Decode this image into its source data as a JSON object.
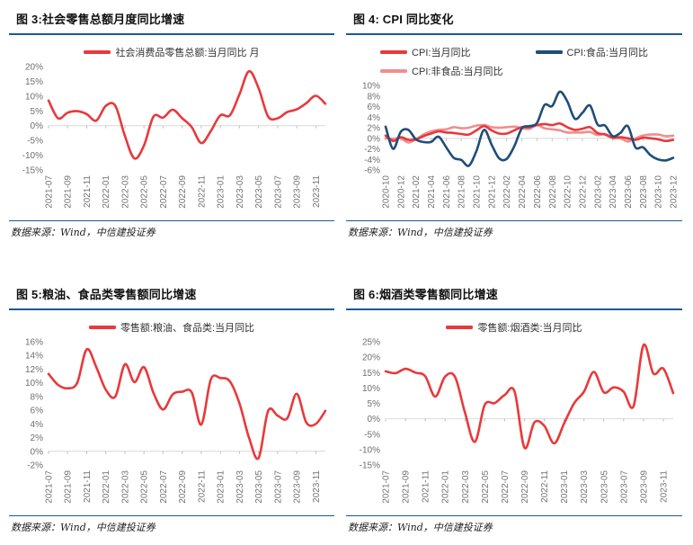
{
  "colors": {
    "accent_red": "#e8393b",
    "accent_navy": "#1f4e79",
    "accent_pink": "#ef8e8f",
    "rule_blue": "#1b5a96",
    "zero_axis": "#d9d9d9",
    "tick": "#bfbfbf",
    "axis_label": "#737373"
  },
  "chart_data": [
    {
      "id": "retail-total-yoy",
      "type": "line",
      "title": "图 3:社会零售总额月度同比增速",
      "source": "数据来源：Wind，中信建投证券",
      "ylim": [
        -15,
        20
      ],
      "ytick_step": 5,
      "ytick_suffix": "%",
      "x_label_every": 2,
      "grid": false,
      "legend_position": "top-center",
      "categories": [
        "2021-07",
        "2021-08",
        "2021-09",
        "2021-10",
        "2021-11",
        "2021-12",
        "2022-01",
        "2022-02",
        "2022-03",
        "2022-04",
        "2022-05",
        "2022-06",
        "2022-07",
        "2022-08",
        "2022-09",
        "2022-10",
        "2022-11",
        "2022-12",
        "2023-01",
        "2023-02",
        "2023-03",
        "2023-04",
        "2023-05",
        "2023-06",
        "2023-07",
        "2023-08",
        "2023-09",
        "2023-10",
        "2023-11",
        "2023-12"
      ],
      "series": [
        {
          "name": "社会消费品零售总额:当月同比 月",
          "color": "#e8393b",
          "z": 0,
          "values": [
            8.5,
            2.5,
            4.4,
            4.9,
            3.9,
            1.7,
            6.7,
            6.7,
            -3.5,
            -11.1,
            -6.7,
            3.1,
            2.7,
            5.4,
            2.5,
            -0.5,
            -5.9,
            -1.8,
            3.5,
            3.5,
            10.6,
            18.4,
            12.7,
            3.1,
            2.5,
            4.6,
            5.5,
            7.6,
            10.1,
            7.4
          ]
        }
      ]
    },
    {
      "id": "cpi-yoy",
      "type": "line",
      "title": "图 4: CPI 同比变化",
      "source": "数据来源：Wind，中信建投证券",
      "ylim": [
        -6,
        10
      ],
      "ytick_step": 2,
      "ytick_suffix": "%",
      "x_label_every": 2,
      "grid": false,
      "legend_position": "top-center",
      "categories": [
        "2020-10",
        "2020-11",
        "2020-12",
        "2021-01",
        "2021-02",
        "2021-03",
        "2021-04",
        "2021-05",
        "2021-06",
        "2021-07",
        "2021-08",
        "2021-09",
        "2021-10",
        "2021-11",
        "2021-12",
        "2022-01",
        "2022-02",
        "2022-03",
        "2022-04",
        "2022-05",
        "2022-06",
        "2022-07",
        "2022-08",
        "2022-09",
        "2022-10",
        "2022-11",
        "2022-12",
        "2023-01",
        "2023-02",
        "2023-03",
        "2023-04",
        "2023-05",
        "2023-06",
        "2023-07",
        "2023-08",
        "2023-09",
        "2023-10",
        "2023-11",
        "2023-12"
      ],
      "series": [
        {
          "name": "CPI:当月同比",
          "color": "#e8393b",
          "z": 1,
          "values": [
            0.5,
            -0.5,
            0.2,
            -0.3,
            -0.2,
            0.4,
            0.9,
            1.3,
            1.1,
            1.0,
            0.8,
            0.7,
            1.5,
            2.3,
            1.5,
            0.9,
            0.9,
            1.5,
            2.1,
            2.1,
            2.5,
            2.7,
            2.5,
            2.8,
            2.1,
            1.6,
            1.8,
            2.1,
            1.0,
            0.7,
            0.1,
            0.2,
            0.0,
            -0.3,
            0.1,
            0.0,
            -0.2,
            -0.5,
            -0.3
          ]
        },
        {
          "name": "CPI:食品:当月同比",
          "color": "#1f4e79",
          "z": 2,
          "values": [
            2.2,
            -2.0,
            1.2,
            1.6,
            -0.2,
            -0.7,
            -0.7,
            0.3,
            -1.7,
            -3.7,
            -4.1,
            -5.2,
            -2.4,
            1.6,
            -1.2,
            -3.8,
            -3.9,
            -1.5,
            1.9,
            2.3,
            2.9,
            6.3,
            6.1,
            8.8,
            7.0,
            3.7,
            4.8,
            6.2,
            2.6,
            2.4,
            0.4,
            1.0,
            2.3,
            -1.7,
            -1.7,
            -3.2,
            -4.0,
            -4.2,
            -3.7
          ]
        },
        {
          "name": "CPI:非食品:当月同比",
          "color": "#ef8e8f",
          "z": 0,
          "values": [
            0.0,
            -0.1,
            0.0,
            -0.8,
            -0.2,
            0.7,
            1.3,
            1.6,
            1.7,
            2.1,
            1.9,
            2.0,
            2.4,
            2.5,
            2.1,
            2.0,
            2.1,
            2.2,
            1.9,
            1.8,
            2.5,
            1.9,
            1.7,
            1.5,
            1.1,
            1.1,
            1.1,
            1.2,
            0.6,
            0.8,
            0.1,
            0.0,
            -0.6,
            0.0,
            0.5,
            0.7,
            0.7,
            0.4,
            0.5
          ]
        }
      ]
    },
    {
      "id": "grain-oil-food-retail-yoy",
      "type": "line",
      "title": "图 5:粮油、食品类零售额同比增速",
      "source": "数据来源：Wind，中信建投证券",
      "ylim": [
        -2,
        16
      ],
      "ytick_step": 2,
      "ytick_suffix": "%",
      "x_label_every": 2,
      "grid": false,
      "legend_position": "top-center",
      "categories": [
        "2021-07",
        "2021-08",
        "2021-09",
        "2021-10",
        "2021-11",
        "2021-12",
        "2022-01",
        "2022-02",
        "2022-03",
        "2022-04",
        "2022-05",
        "2022-06",
        "2022-07",
        "2022-08",
        "2022-09",
        "2022-10",
        "2022-11",
        "2022-12",
        "2023-01",
        "2023-02",
        "2023-03",
        "2023-04",
        "2023-05",
        "2023-06",
        "2023-07",
        "2023-08",
        "2023-09",
        "2023-10",
        "2023-11",
        "2023-12"
      ],
      "series": [
        {
          "name": "零售额:粮油、食品类:当月同比",
          "color": "#e8393b",
          "z": 0,
          "values": [
            11.3,
            9.7,
            9.2,
            10.0,
            14.9,
            12.3,
            9.0,
            8.0,
            12.7,
            10.1,
            12.3,
            8.5,
            6.1,
            8.3,
            8.7,
            8.6,
            3.9,
            10.5,
            10.7,
            10.2,
            7.0,
            2.0,
            -1.0,
            5.9,
            5.2,
            4.8,
            8.4,
            4.2,
            4.0,
            5.9
          ]
        }
      ]
    },
    {
      "id": "tobacco-alcohol-retail-yoy",
      "type": "line",
      "title": "图 6:烟酒类零售额同比增速",
      "source": "数据来源：Wind，中信建投证券",
      "ylim": [
        -15,
        25
      ],
      "ytick_step": 5,
      "ytick_suffix": "%",
      "x_label_every": 2,
      "grid": false,
      "legend_position": "top-center",
      "categories": [
        "2021-07",
        "2021-08",
        "2021-09",
        "2021-10",
        "2021-11",
        "2021-12",
        "2022-01",
        "2022-02",
        "2022-03",
        "2022-04",
        "2022-05",
        "2022-06",
        "2022-07",
        "2022-08",
        "2022-09",
        "2022-10",
        "2022-11",
        "2022-12",
        "2023-01",
        "2023-02",
        "2023-03",
        "2023-04",
        "2023-05",
        "2023-06",
        "2023-07",
        "2023-08",
        "2023-09",
        "2023-10",
        "2023-11",
        "2023-12"
      ],
      "series": [
        {
          "name": "零售额:烟酒类:当月同比",
          "color": "#e8393b",
          "z": 0,
          "values": [
            15.4,
            14.8,
            16.2,
            15.0,
            13.8,
            7.2,
            13.7,
            13.6,
            2.0,
            -7.5,
            4.5,
            5.1,
            7.7,
            8.9,
            -9.4,
            -1.2,
            -2.3,
            -8.0,
            -1.5,
            5.0,
            8.8,
            15.2,
            8.6,
            10.2,
            8.8,
            4.1,
            23.9,
            14.7,
            16.3,
            8.3
          ]
        }
      ]
    }
  ]
}
